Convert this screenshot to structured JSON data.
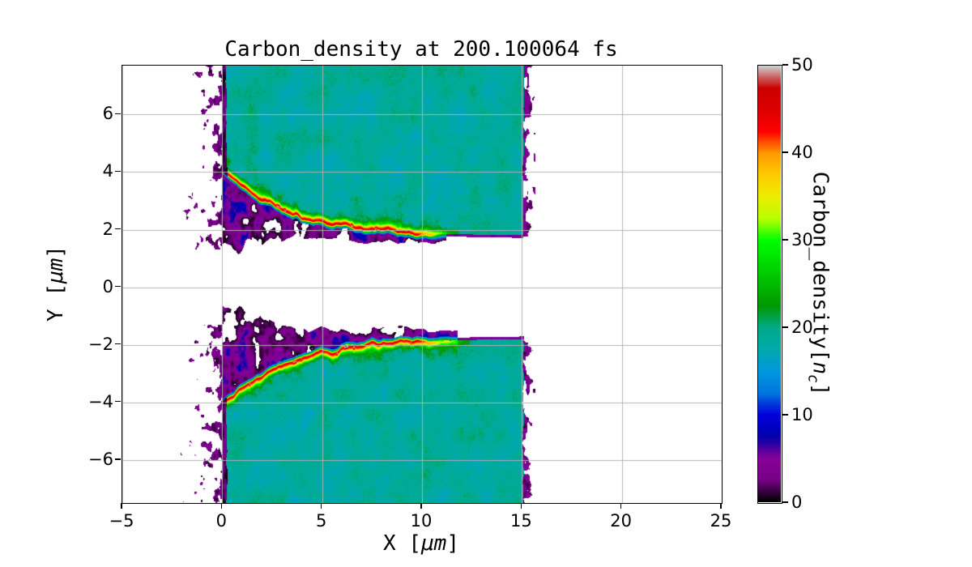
{
  "figure": {
    "title": "Carbon_density at 200.100064 fs",
    "xlabel": {
      "prefix": "X [",
      "unit": "μm",
      "suffix": "]"
    },
    "ylabel": {
      "prefix": "Y [",
      "unit": "μm",
      "suffix": "]"
    },
    "x_tick_labels": [
      "−5",
      "0",
      "5",
      "10",
      "15",
      "20",
      "25"
    ],
    "y_tick_labels": [
      "6",
      "4",
      "2",
      "0",
      "−2",
      "−4",
      "−6"
    ],
    "colorbar": {
      "label_prefix": "Carbon_density[",
      "label_var": "n",
      "label_sub": "c",
      "label_suffix": "]",
      "tick_labels": [
        "0",
        "10",
        "20",
        "30",
        "40",
        "50"
      ]
    }
  },
  "chart_data": {
    "type": "heatmap",
    "title": "Carbon_density at 200.100064 fs",
    "time_fs": 200.100064,
    "xlabel": "X [μm]",
    "ylabel": "Y [μm]",
    "xlim": [
      -5,
      25
    ],
    "ylim": [
      -7.5,
      7.7
    ],
    "x_ticks": [
      -5,
      0,
      5,
      10,
      15,
      20,
      25
    ],
    "y_ticks": [
      6,
      4,
      2,
      0,
      -2,
      -4,
      -6
    ],
    "grid": true,
    "grid_color": "#b2b2b2",
    "background": "#ffffff",
    "colorbar": {
      "label": "Carbon_density[n_c]",
      "ticks": [
        0,
        10,
        20,
        30,
        40,
        50
      ],
      "clim": [
        0,
        50
      ],
      "colormap": "nipy_spectral"
    },
    "colormap_stops": [
      [
        0.0,
        0.0,
        0.0,
        0.0
      ],
      [
        0.05,
        0.4667,
        0.0,
        0.5333
      ],
      [
        0.1,
        0.5333,
        0.0,
        0.6
      ],
      [
        0.15,
        0.0,
        0.0,
        0.6667
      ],
      [
        0.2,
        0.0,
        0.0,
        0.8667
      ],
      [
        0.25,
        0.0,
        0.4667,
        0.8667
      ],
      [
        0.3,
        0.0,
        0.6,
        0.8667
      ],
      [
        0.35,
        0.0,
        0.6667,
        0.6667
      ],
      [
        0.4,
        0.0,
        0.6667,
        0.5333
      ],
      [
        0.45,
        0.0,
        0.6,
        0.0
      ],
      [
        0.5,
        0.0,
        0.7333,
        0.0
      ],
      [
        0.55,
        0.0,
        0.8667,
        0.0
      ],
      [
        0.6,
        0.0,
        1.0,
        0.0
      ],
      [
        0.65,
        0.7333,
        1.0,
        0.0
      ],
      [
        0.7,
        0.9333,
        0.9333,
        0.0
      ],
      [
        0.75,
        1.0,
        0.8,
        0.0
      ],
      [
        0.8,
        1.0,
        0.6,
        0.0
      ],
      [
        0.85,
        1.0,
        0.0,
        0.0
      ],
      [
        0.9,
        0.8667,
        0.0,
        0.0
      ],
      [
        0.95,
        0.8,
        0.0,
        0.0
      ],
      [
        1.0,
        0.8,
        0.8,
        0.8
      ]
    ],
    "model": {
      "description": "Two carbon slabs spanning x 0 to 15.5 um with bulk density ~18-20 nc (teal), separated by a laser-bored channel |y| < ~1.8 um (empty/white). Channel walls carry compressed surface filaments peaking ~42-50 nc (red/gray cores, yellow-green sheath) curving from y = +/-3.9 um at x = 0 down to y = +/-1.8 um by x ~ 11.5, lined on the channel side by a thin ~10 nc blue fringe and 0-8 nc black/purple turbulent ejecta; ragged low-density slab edges at x ~ 0 and x ~ 15.5 with sparse dark speckles out to x ~ -2.",
      "slab_x_range": [
        0,
        15.5
      ],
      "bulk_density_nc": 18.5,
      "channel_half_width": 1.78,
      "edge_curve_amp": 2.3,
      "edge_curve_scale": 3.3,
      "filament_peak_nc": 44,
      "filament_half_width": 0.22,
      "filament_x_end": 11.2,
      "blue_fringe_nc": 10.5,
      "turb_depth_amp": 2.6,
      "turb_depth_scale": 2.4,
      "left_speckle_xmin": -2.1,
      "right_edge_x": [
        15.08,
        15.68
      ]
    }
  }
}
